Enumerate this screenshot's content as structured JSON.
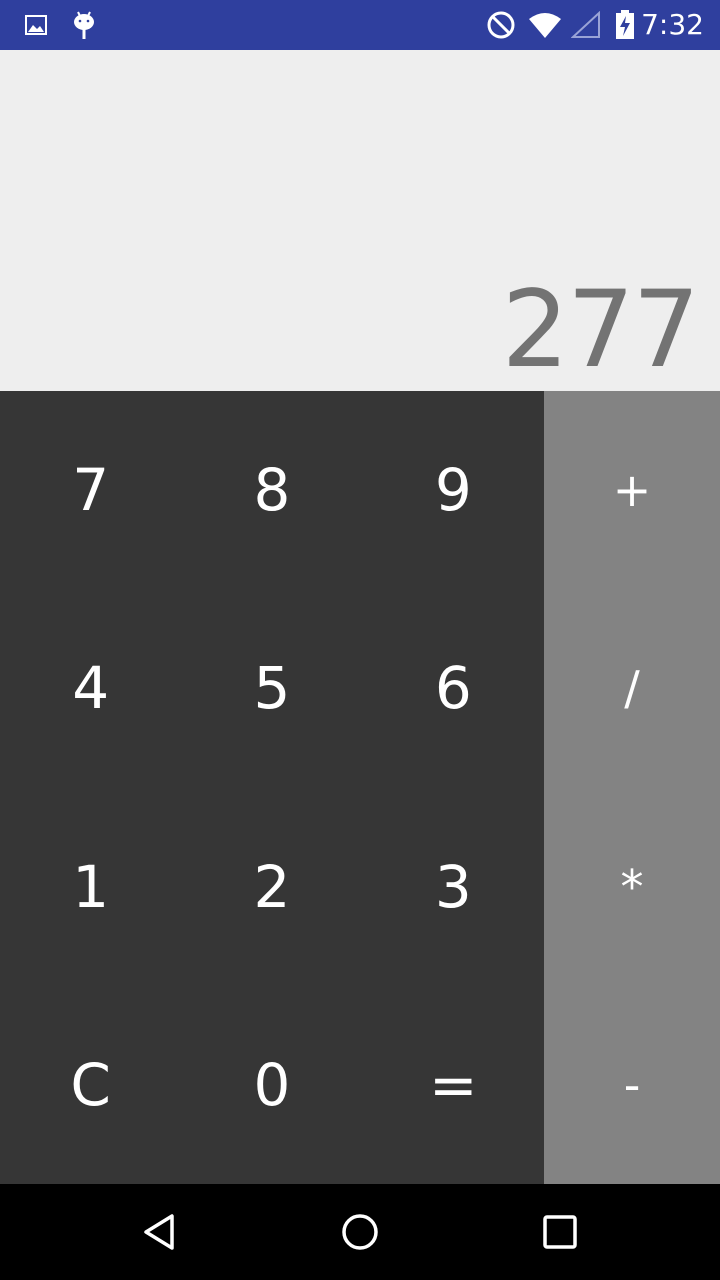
{
  "status_bar": {
    "time": "7:32",
    "icons": [
      "image-icon",
      "android-debug-icon",
      "do-not-disturb-icon",
      "wifi-icon",
      "cellular-signal-icon",
      "battery-charging-icon"
    ],
    "background_color": "#2f3f9e"
  },
  "display": {
    "value": "277",
    "text_color": "#737373",
    "background_color": "#eeeeee"
  },
  "keypad": {
    "keys": [
      "7",
      "8",
      "9",
      "4",
      "5",
      "6",
      "1",
      "2",
      "3",
      "C",
      "0",
      "="
    ],
    "background_color": "#363636"
  },
  "operators": {
    "keys": [
      "+",
      "/",
      "*",
      "-"
    ],
    "background_color": "#838383"
  },
  "nav_bar": {
    "buttons": [
      "back-icon",
      "home-icon",
      "recents-icon"
    ]
  }
}
